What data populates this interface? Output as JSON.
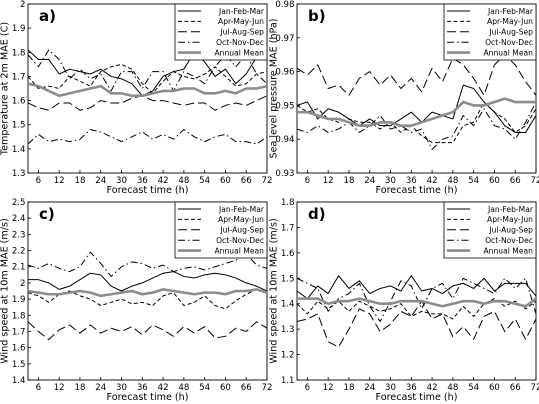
{
  "figure": {
    "background": "#ffffff"
  },
  "chart_data": [
    {
      "type": "line",
      "panel_label": "a)",
      "xlabel": "Forecast time (h)",
      "ylabel": "Temperature at 2m MAE (C)",
      "x": [
        3,
        6,
        9,
        12,
        15,
        18,
        21,
        24,
        27,
        30,
        33,
        36,
        39,
        42,
        45,
        48,
        51,
        54,
        57,
        60,
        63,
        66,
        69,
        72
      ],
      "xticks": [
        6,
        12,
        18,
        24,
        30,
        36,
        42,
        48,
        54,
        60,
        66,
        72
      ],
      "xtick_labels": [
        "6",
        "12",
        "18",
        "24",
        "30",
        "36",
        "42",
        "48",
        "54",
        "60",
        "66",
        "72"
      ],
      "xlim": [
        3,
        72
      ],
      "ylim": [
        1.3,
        2.0
      ],
      "yticks": [
        1.3,
        1.4,
        1.5,
        1.6,
        1.7,
        1.8,
        1.9,
        2.0
      ],
      "ytick_labels": [
        "1.3",
        "1.4",
        "1.5",
        "1.6",
        "1.7",
        "1.8",
        "1.9",
        "2"
      ],
      "grid": false,
      "legend_position": "top-right",
      "series": [
        {
          "name": "Jan-Feb-Mar",
          "style": "solid",
          "color": "#000000",
          "values": [
            1.81,
            1.77,
            1.77,
            1.71,
            1.73,
            1.72,
            1.71,
            1.73,
            1.7,
            1.69,
            1.67,
            1.62,
            1.64,
            1.7,
            1.72,
            1.73,
            1.8,
            1.76,
            1.7,
            1.73,
            1.67,
            1.71,
            1.78,
            1.82
          ]
        },
        {
          "name": "Apr-May-Jun",
          "style": "dashed",
          "color": "#000000",
          "values": [
            1.7,
            1.65,
            1.66,
            1.65,
            1.7,
            1.68,
            1.66,
            1.72,
            1.74,
            1.75,
            1.73,
            1.67,
            1.63,
            1.68,
            1.72,
            1.7,
            1.69,
            1.71,
            1.74,
            1.7,
            1.66,
            1.67,
            1.71,
            1.72
          ]
        },
        {
          "name": "Jul-Aug-Sep",
          "style": "longdash",
          "color": "#000000",
          "values": [
            1.59,
            1.57,
            1.56,
            1.59,
            1.59,
            1.56,
            1.57,
            1.6,
            1.59,
            1.59,
            1.61,
            1.62,
            1.6,
            1.6,
            1.59,
            1.58,
            1.59,
            1.59,
            1.56,
            1.58,
            1.59,
            1.58,
            1.6,
            1.62
          ]
        },
        {
          "name": "Oct-Nov-Dec",
          "style": "dashdot",
          "color": "#000000",
          "values": [
            1.79,
            1.74,
            1.81,
            1.77,
            1.69,
            1.73,
            1.69,
            1.71,
            1.64,
            1.72,
            1.72,
            1.65,
            1.72,
            1.72,
            1.64,
            1.72,
            1.7,
            1.67,
            1.74,
            1.79,
            1.74,
            1.79,
            1.71,
            1.67
          ]
        },
        {
          "name": "",
          "style": "dashdot",
          "color": "#000000",
          "values": [
            1.42,
            1.46,
            1.43,
            1.44,
            1.43,
            1.44,
            1.48,
            1.47,
            1.45,
            1.43,
            1.45,
            1.47,
            1.44,
            1.46,
            1.44,
            1.48,
            1.45,
            1.43,
            1.45,
            1.46,
            1.43,
            1.43,
            1.42,
            1.45
          ]
        },
        {
          "name": "Annual Mean",
          "style": "thick",
          "color": "#8c8c8c",
          "values": [
            1.67,
            1.66,
            1.64,
            1.62,
            1.63,
            1.64,
            1.65,
            1.66,
            1.63,
            1.63,
            1.62,
            1.62,
            1.63,
            1.64,
            1.64,
            1.65,
            1.65,
            1.63,
            1.63,
            1.64,
            1.63,
            1.65,
            1.65,
            1.66
          ]
        }
      ]
    },
    {
      "type": "line",
      "panel_label": "b)",
      "xlabel": "Forecast time (h)",
      "ylabel": "Sea level pressure MAE (hPa)",
      "x": [
        3,
        6,
        9,
        12,
        15,
        18,
        21,
        24,
        27,
        30,
        33,
        36,
        39,
        42,
        45,
        48,
        51,
        54,
        57,
        60,
        63,
        66,
        69,
        72
      ],
      "xticks": [
        6,
        12,
        18,
        24,
        30,
        36,
        42,
        48,
        54,
        60,
        66,
        72
      ],
      "xtick_labels": [
        "6",
        "12",
        "18",
        "24",
        "30",
        "36",
        "42",
        "48",
        "54",
        "60",
        "66",
        "72"
      ],
      "xlim": [
        3,
        72
      ],
      "ylim": [
        0.93,
        0.98
      ],
      "yticks": [
        0.93,
        0.94,
        0.95,
        0.96,
        0.97,
        0.98
      ],
      "ytick_labels": [
        "0.93",
        "0.94",
        "0.95",
        "0.96",
        "0.97",
        "0.98"
      ],
      "grid": false,
      "legend_position": "top-right",
      "series": [
        {
          "name": "Jan-Feb-Mar",
          "style": "solid",
          "color": "#000000",
          "values": [
            0.95,
            0.951,
            0.946,
            0.949,
            0.948,
            0.946,
            0.944,
            0.946,
            0.944,
            0.944,
            0.946,
            0.948,
            0.945,
            0.948,
            0.947,
            0.946,
            0.956,
            0.955,
            0.951,
            0.948,
            0.944,
            0.942,
            0.942,
            0.947
          ]
        },
        {
          "name": "Apr-May-Jun",
          "style": "dashed",
          "color": "#000000",
          "values": [
            0.95,
            0.948,
            0.949,
            0.946,
            0.945,
            0.946,
            0.945,
            0.945,
            0.943,
            0.945,
            0.942,
            0.944,
            0.941,
            0.939,
            0.939,
            0.939,
            0.944,
            0.945,
            0.951,
            0.948,
            0.946,
            0.942,
            0.944,
            0.949
          ]
        },
        {
          "name": "Jul-Aug-Sep",
          "style": "longdash",
          "color": "#000000",
          "values": [
            0.961,
            0.959,
            0.962,
            0.955,
            0.956,
            0.953,
            0.958,
            0.96,
            0.956,
            0.959,
            0.955,
            0.958,
            0.954,
            0.961,
            0.957,
            0.964,
            0.962,
            0.958,
            0.953,
            0.962,
            0.965,
            0.962,
            0.957,
            0.953
          ]
        },
        {
          "name": "Oct-Nov-Dec",
          "style": "dashdot",
          "color": "#000000",
          "values": [
            0.943,
            0.942,
            0.944,
            0.942,
            0.943,
            0.945,
            0.942,
            0.944,
            0.947,
            0.943,
            0.944,
            0.942,
            0.943,
            0.937,
            0.94,
            0.941,
            0.947,
            0.944,
            0.949,
            0.944,
            0.943,
            0.94,
            0.945,
            0.951
          ]
        },
        {
          "name": "Annual Mean",
          "style": "thick",
          "color": "#8c8c8c",
          "values": [
            0.948,
            0.948,
            0.947,
            0.946,
            0.946,
            0.945,
            0.944,
            0.944,
            0.945,
            0.945,
            0.944,
            0.944,
            0.945,
            0.946,
            0.947,
            0.948,
            0.951,
            0.95,
            0.95,
            0.951,
            0.952,
            0.951,
            0.951,
            0.951
          ]
        }
      ]
    },
    {
      "type": "line",
      "panel_label": "c)",
      "xlabel": "Forecast time (h)",
      "ylabel": "Wind speed at 10m MAE (m/s)",
      "x": [
        3,
        6,
        9,
        12,
        15,
        18,
        21,
        24,
        27,
        30,
        33,
        36,
        39,
        42,
        45,
        48,
        51,
        54,
        57,
        60,
        63,
        66,
        69,
        72
      ],
      "xticks": [
        6,
        12,
        18,
        24,
        30,
        36,
        42,
        48,
        54,
        60,
        66,
        72
      ],
      "xtick_labels": [
        "6",
        "12",
        "18",
        "24",
        "30",
        "36",
        "42",
        "48",
        "54",
        "60",
        "66",
        "72"
      ],
      "xlim": [
        3,
        72
      ],
      "ylim": [
        1.4,
        2.5
      ],
      "yticks": [
        1.4,
        1.5,
        1.6,
        1.7,
        1.8,
        1.9,
        2.0,
        2.1,
        2.2,
        2.3,
        2.4,
        2.5
      ],
      "ytick_labels": [
        "1.4",
        "1.5",
        "1.6",
        "1.7",
        "1.8",
        "1.9",
        "2",
        "2.1",
        "2.2",
        "2.3",
        "2.4",
        "2.5"
      ],
      "grid": false,
      "legend_position": "top-right",
      "series": [
        {
          "name": "Jan-Feb-Mar",
          "style": "solid",
          "color": "#000000",
          "values": [
            2.02,
            2.02,
            2.0,
            1.96,
            1.98,
            2.02,
            2.06,
            2.05,
            1.98,
            1.95,
            1.98,
            2.0,
            2.03,
            2.06,
            2.07,
            2.04,
            2.03,
            2.05,
            2.06,
            2.05,
            2.03,
            2.0,
            1.98,
            1.95
          ]
        },
        {
          "name": "Apr-May-Jun",
          "style": "dashed",
          "color": "#000000",
          "values": [
            1.94,
            1.92,
            1.88,
            1.93,
            1.95,
            1.92,
            1.9,
            1.86,
            1.88,
            1.9,
            1.87,
            1.88,
            1.86,
            1.92,
            1.94,
            1.86,
            1.88,
            1.92,
            1.86,
            1.84,
            1.89,
            1.93,
            1.96,
            1.94
          ]
        },
        {
          "name": "Jul-Aug-Sep",
          "style": "longdash",
          "color": "#000000",
          "values": [
            1.76,
            1.7,
            1.65,
            1.71,
            1.74,
            1.69,
            1.74,
            1.69,
            1.72,
            1.7,
            1.73,
            1.68,
            1.74,
            1.71,
            1.67,
            1.73,
            1.69,
            1.73,
            1.66,
            1.67,
            1.72,
            1.7,
            1.76,
            1.72
          ]
        },
        {
          "name": "Oct-Nov-Dec",
          "style": "dashdot",
          "color": "#000000",
          "values": [
            2.11,
            2.09,
            2.12,
            2.09,
            2.07,
            2.1,
            2.19,
            2.12,
            2.04,
            2.1,
            2.13,
            2.12,
            2.09,
            2.11,
            2.07,
            2.09,
            2.1,
            2.08,
            2.1,
            2.12,
            2.14,
            2.18,
            2.11,
            2.09
          ]
        },
        {
          "name": "Annual Mean",
          "style": "thick",
          "color": "#8c8c8c",
          "values": [
            1.95,
            1.94,
            1.93,
            1.93,
            1.94,
            1.95,
            1.94,
            1.92,
            1.93,
            1.94,
            1.95,
            1.93,
            1.94,
            1.96,
            1.95,
            1.94,
            1.93,
            1.94,
            1.94,
            1.93,
            1.95,
            1.95,
            1.96,
            1.94
          ]
        }
      ]
    },
    {
      "type": "line",
      "panel_label": "d)",
      "xlabel": "Forecast time (h)",
      "ylabel": "Wind speed at 10m MAE (m/s)",
      "x": [
        3,
        6,
        9,
        12,
        15,
        18,
        21,
        24,
        27,
        30,
        33,
        36,
        39,
        42,
        45,
        48,
        51,
        54,
        57,
        60,
        63,
        66,
        69,
        72
      ],
      "xticks": [
        6,
        12,
        18,
        24,
        30,
        36,
        42,
        48,
        54,
        60,
        66,
        72
      ],
      "xtick_labels": [
        "6",
        "12",
        "18",
        "24",
        "30",
        "36",
        "42",
        "48",
        "54",
        "60",
        "66",
        "72"
      ],
      "xlim": [
        3,
        72
      ],
      "ylim": [
        1.1,
        1.8
      ],
      "yticks": [
        1.1,
        1.2,
        1.3,
        1.4,
        1.5,
        1.6,
        1.7,
        1.8
      ],
      "ytick_labels": [
        "1.1",
        "1.2",
        "1.3",
        "1.4",
        "1.5",
        "1.6",
        "1.7",
        "1.8"
      ],
      "grid": false,
      "legend_position": "top-right",
      "series": [
        {
          "name": "Jan-Feb-Mar",
          "style": "solid",
          "color": "#000000",
          "values": [
            1.45,
            1.42,
            1.47,
            1.44,
            1.51,
            1.46,
            1.49,
            1.44,
            1.46,
            1.47,
            1.45,
            1.51,
            1.45,
            1.46,
            1.44,
            1.47,
            1.48,
            1.46,
            1.5,
            1.45,
            1.48,
            1.48,
            1.48,
            1.43
          ]
        },
        {
          "name": "Apr-May-Jun",
          "style": "dashed",
          "color": "#000000",
          "values": [
            1.4,
            1.36,
            1.41,
            1.38,
            1.41,
            1.37,
            1.41,
            1.39,
            1.37,
            1.38,
            1.4,
            1.35,
            1.37,
            1.36,
            1.36,
            1.34,
            1.39,
            1.35,
            1.4,
            1.42,
            1.39,
            1.41,
            1.38,
            1.41
          ]
        },
        {
          "name": "Jul-Aug-Sep",
          "style": "longdash",
          "color": "#000000",
          "values": [
            1.33,
            1.34,
            1.36,
            1.25,
            1.23,
            1.3,
            1.38,
            1.36,
            1.29,
            1.32,
            1.37,
            1.35,
            1.41,
            1.34,
            1.36,
            1.27,
            1.31,
            1.26,
            1.35,
            1.37,
            1.29,
            1.34,
            1.26,
            1.34
          ]
        },
        {
          "name": "Oct-Nov-Dec",
          "style": "dashdot",
          "color": "#000000",
          "values": [
            1.5,
            1.48,
            1.46,
            1.37,
            1.42,
            1.44,
            1.48,
            1.39,
            1.33,
            1.41,
            1.49,
            1.47,
            1.38,
            1.46,
            1.48,
            1.42,
            1.5,
            1.48,
            1.46,
            1.44,
            1.5,
            1.46,
            1.5,
            1.36
          ]
        },
        {
          "name": "Annual Mean",
          "style": "thick",
          "color": "#8c8c8c",
          "values": [
            1.42,
            1.42,
            1.42,
            1.4,
            1.41,
            1.41,
            1.42,
            1.41,
            1.4,
            1.4,
            1.41,
            1.41,
            1.41,
            1.4,
            1.39,
            1.4,
            1.41,
            1.41,
            1.4,
            1.41,
            1.41,
            1.4,
            1.39,
            1.42
          ]
        }
      ]
    }
  ]
}
